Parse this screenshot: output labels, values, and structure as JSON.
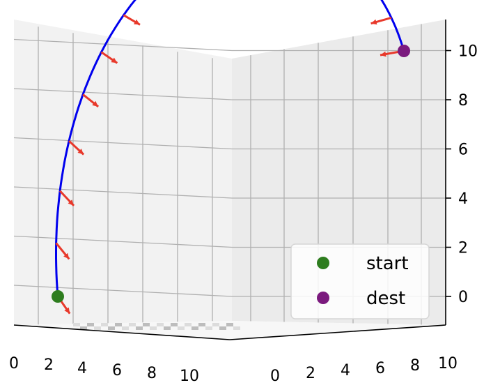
{
  "chart_data": {
    "type": "line3d",
    "title": "",
    "xlabel": "",
    "ylabel": "",
    "zlabel": "",
    "grid": true,
    "x_ticks": [
      0,
      2,
      4,
      6,
      8,
      10
    ],
    "y_ticks": [
      0,
      2,
      4,
      6,
      8,
      10
    ],
    "z_ticks": [
      0,
      2,
      4,
      6,
      8,
      10
    ],
    "z_tick_labels": [
      "0",
      "2",
      "4",
      "6",
      "8",
      "10"
    ],
    "x_tick_labels": [
      "0",
      "2",
      "4",
      "6",
      "8",
      "10"
    ],
    "y_tick_labels": [
      "0",
      "2",
      "4",
      "6",
      "8",
      "10"
    ],
    "curve": {
      "color": "#0000ee",
      "description": "arc from start to dest",
      "start_point": [
        2.5,
        0,
        0
      ],
      "end_point": [
        10,
        10,
        10
      ]
    },
    "arrows": {
      "color": "#e8392b",
      "count": 18
    },
    "points": [
      {
        "name": "start",
        "color": "#2e7d1f"
      },
      {
        "name": "dest",
        "color": "#7b1a7e"
      }
    ],
    "legend": {
      "position": "lower-right",
      "entries": [
        "start",
        "dest"
      ]
    }
  }
}
